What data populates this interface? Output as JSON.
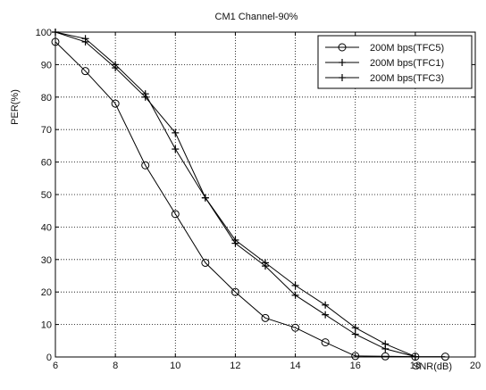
{
  "chart_data": {
    "type": "line",
    "title": "CM1 Channel-90%",
    "xlabel": "SNR(dB)",
    "ylabel": "PER(%)",
    "xlim": [
      6,
      20
    ],
    "ylim": [
      0,
      100
    ],
    "xticks": [
      6,
      8,
      10,
      12,
      14,
      16,
      18,
      20
    ],
    "yticks": [
      0,
      10,
      20,
      30,
      40,
      50,
      60,
      70,
      80,
      90,
      100
    ],
    "grid": true,
    "legend_position": "top-right",
    "series": [
      {
        "name": "200M bps(TFC5)",
        "marker": "circle",
        "color": "#000000",
        "x": [
          6,
          7,
          8,
          9,
          10,
          11,
          12,
          13,
          14,
          15,
          16,
          17,
          18,
          19
        ],
        "y": [
          97,
          88,
          78,
          59,
          44,
          29,
          20,
          12,
          9,
          4.5,
          0.3,
          0.2,
          0.1,
          0.1
        ]
      },
      {
        "name": "200M bps(TFC1)",
        "marker": "plus",
        "color": "#000000",
        "x": [
          6,
          7,
          8,
          9,
          10,
          11,
          12,
          13,
          14,
          15,
          16,
          17,
          18
        ],
        "y": [
          100,
          98,
          90,
          81,
          64,
          49,
          35,
          28,
          19,
          13,
          7,
          2.5,
          0.1
        ]
      },
      {
        "name": "200M bps(TFC3)",
        "marker": "plus",
        "color": "#000000",
        "x": [
          6,
          7,
          8,
          9,
          10,
          11,
          12,
          13,
          14,
          15,
          16,
          17,
          18
        ],
        "y": [
          100,
          97,
          89,
          80,
          69,
          49,
          36,
          29,
          22,
          16,
          9,
          4,
          0.1
        ]
      }
    ]
  }
}
